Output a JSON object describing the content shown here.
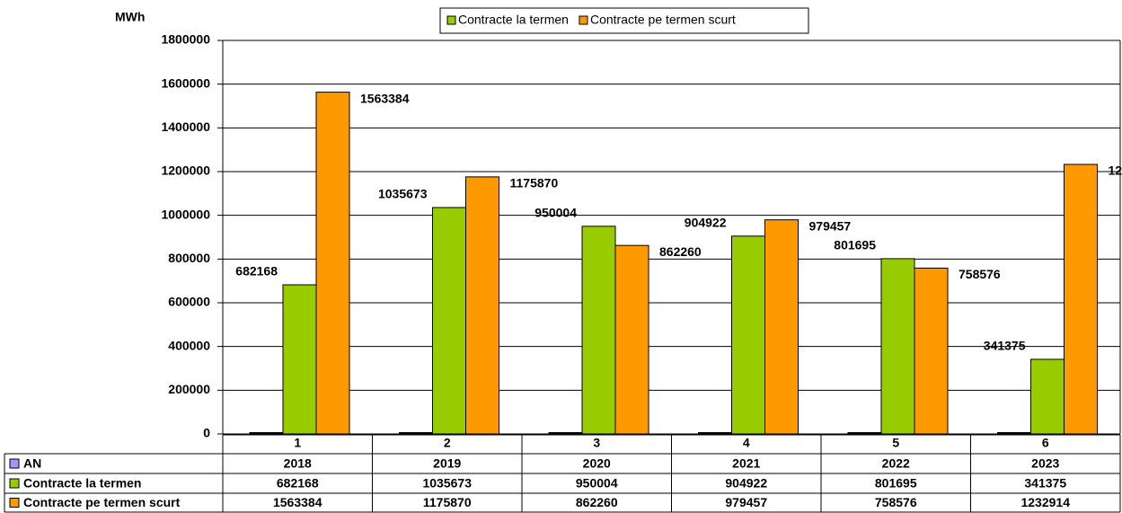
{
  "chart_data": {
    "type": "bar",
    "y_label": "MWh",
    "categories": [
      "1",
      "2",
      "3",
      "4",
      "5",
      "6"
    ],
    "series": [
      {
        "name": "AN",
        "color": "#9999ff",
        "values": [
          2018,
          2019,
          2020,
          2021,
          2022,
          2023
        ]
      },
      {
        "name": "Contracte la termen",
        "color": "#99cc00",
        "values": [
          682168,
          1035673,
          950004,
          904922,
          801695,
          341375
        ]
      },
      {
        "name": "Contracte pe termen scurt",
        "color": "#ff9900",
        "values": [
          1563384,
          1175870,
          862260,
          979457,
          758576,
          1232914
        ]
      }
    ],
    "ylim": [
      0,
      1800000
    ],
    "yticks": [
      0,
      200000,
      400000,
      600000,
      800000,
      1000000,
      1200000,
      1400000,
      1600000,
      1800000
    ],
    "grid": true,
    "legend": "top"
  }
}
